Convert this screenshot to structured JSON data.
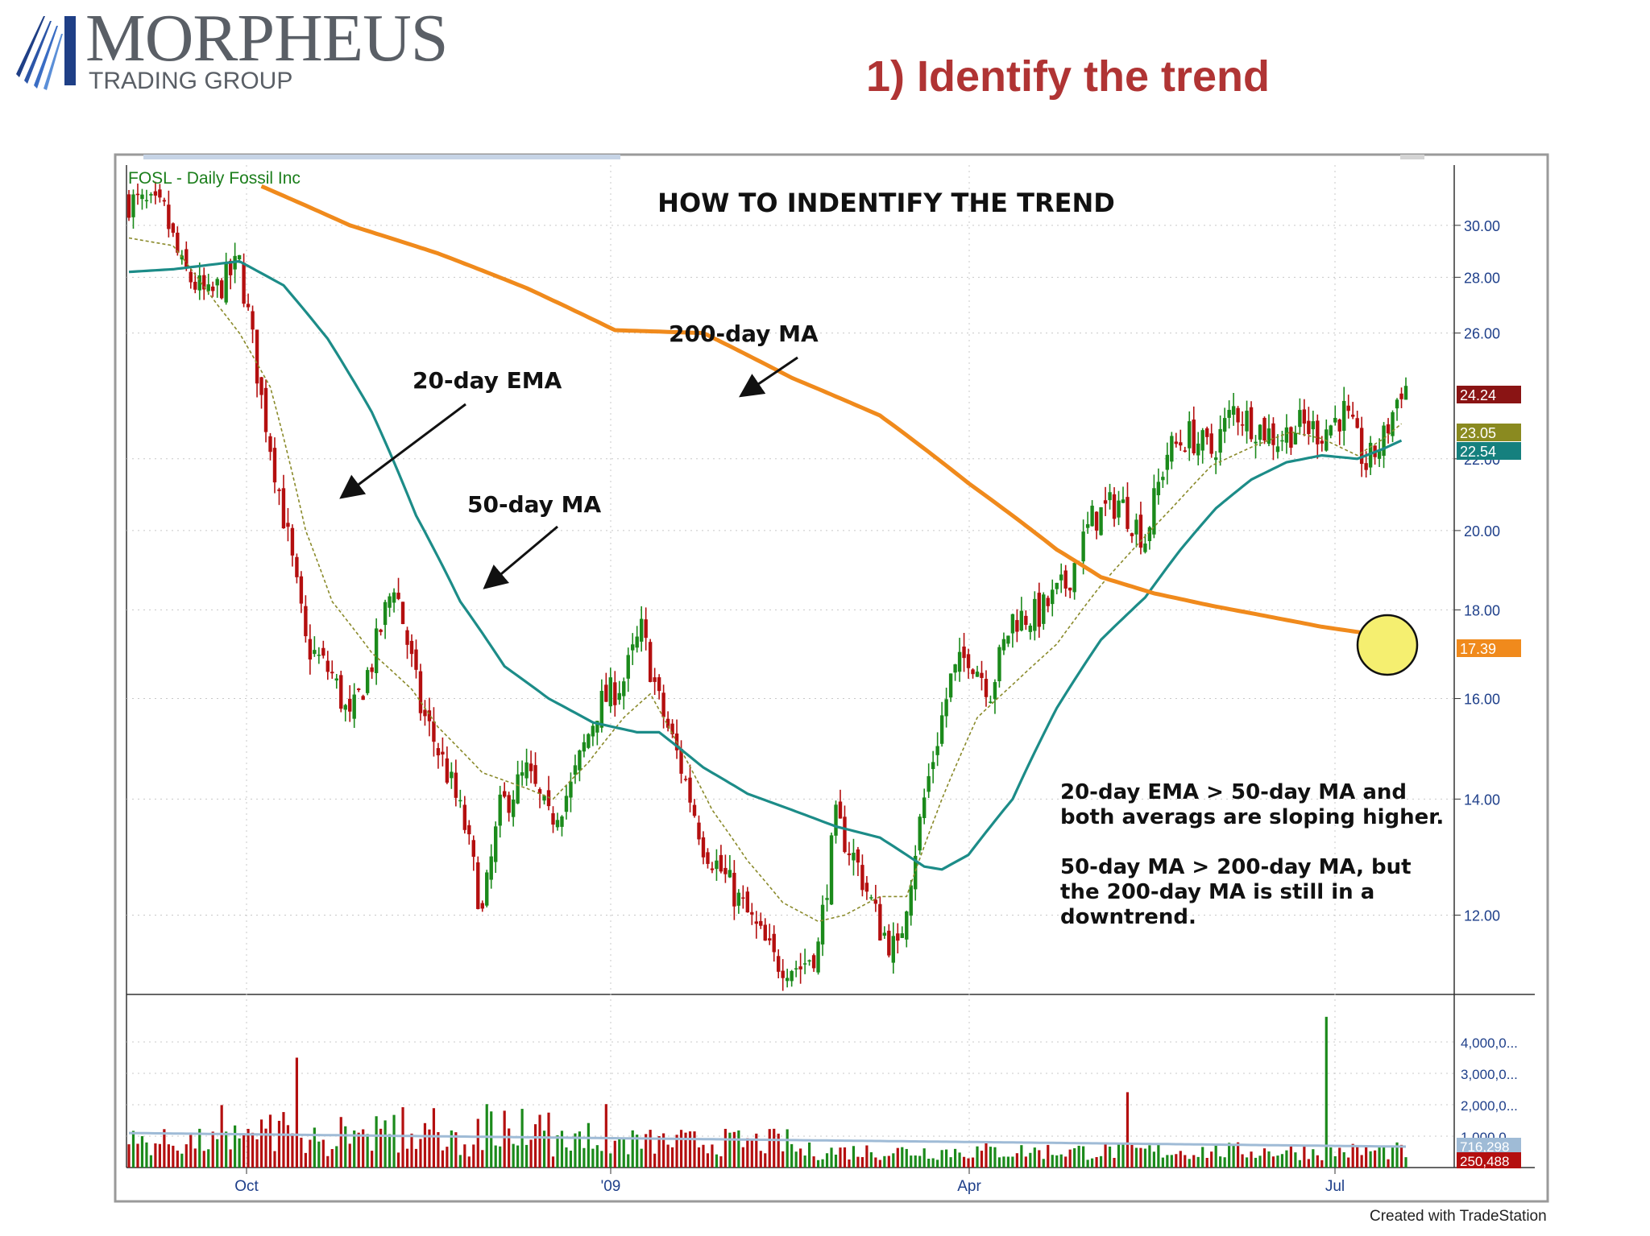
{
  "logo": {
    "brand": "MORPHEUS",
    "sub": "TRADING GROUP"
  },
  "slide_title": "1) Identify the trend",
  "credit": "Created with TradeStation",
  "colors": {
    "up": "#1b8a1b",
    "down": "#b40f0f",
    "ema": "#8a8a2a",
    "ma50": "#1c8c88",
    "ma200": "#f08a1c",
    "title": "#b03434",
    "highlight": "#f5ef70"
  },
  "chart_data": {
    "type": "candlestick",
    "symbol_label": "FOSL - Daily  Fossil Inc",
    "title": "HOW TO INDENTIFY THE TREND",
    "y_log": true,
    "ylim": [
      10.8,
      32.5
    ],
    "y_ticks": [
      "30.00",
      "28.00",
      "26.00",
      "22.00",
      "20.00",
      "18.00",
      "16.00",
      "14.00",
      "12.00"
    ],
    "x_ticks": [
      "Oct",
      "'09",
      "Apr",
      "Jul"
    ],
    "price_tags": [
      {
        "label": "24.24",
        "value": 24.24,
        "color": "#8a1414"
      },
      {
        "label": "23.05",
        "value": 23.05,
        "color": "#8a8a20"
      },
      {
        "label": "22.54",
        "value": 22.54,
        "color": "#15807e"
      },
      {
        "label": "17.39",
        "value": 17.39,
        "color": "#f08a1c"
      }
    ],
    "anchors": [
      [
        0,
        31.0
      ],
      [
        8,
        30.5
      ],
      [
        12,
        28.3
      ],
      [
        18,
        27.2
      ],
      [
        25,
        28.5
      ],
      [
        30,
        23.8
      ],
      [
        35,
        20.4
      ],
      [
        40,
        17.2
      ],
      [
        46,
        16.5
      ],
      [
        50,
        15.5
      ],
      [
        55,
        16.8
      ],
      [
        60,
        18.7
      ],
      [
        66,
        15.8
      ],
      [
        72,
        14.5
      ],
      [
        76,
        13.5
      ],
      [
        80,
        12.0
      ],
      [
        84,
        13.8
      ],
      [
        90,
        14.5
      ],
      [
        95,
        13.6
      ],
      [
        100,
        14.2
      ],
      [
        106,
        15.8
      ],
      [
        112,
        16.4
      ],
      [
        116,
        17.5
      ],
      [
        120,
        15.9
      ],
      [
        125,
        14.6
      ],
      [
        130,
        13.2
      ],
      [
        135,
        12.6
      ],
      [
        140,
        12.0
      ],
      [
        146,
        11.3
      ],
      [
        152,
        11.2
      ],
      [
        156,
        11.5
      ],
      [
        160,
        13.6
      ],
      [
        165,
        12.8
      ],
      [
        170,
        11.8
      ],
      [
        174,
        11.4
      ],
      [
        180,
        14.0
      ],
      [
        186,
        16.4
      ],
      [
        190,
        17.0
      ],
      [
        195,
        16.2
      ],
      [
        200,
        17.8
      ],
      [
        206,
        17.9
      ],
      [
        212,
        18.6
      ],
      [
        218,
        20.3
      ],
      [
        224,
        20.8
      ],
      [
        230,
        19.8
      ],
      [
        235,
        22.2
      ],
      [
        240,
        22.7
      ],
      [
        245,
        22.2
      ],
      [
        250,
        23.5
      ],
      [
        255,
        23.0
      ],
      [
        260,
        22.6
      ],
      [
        265,
        23.0
      ],
      [
        270,
        22.8
      ],
      [
        275,
        23.4
      ],
      [
        280,
        21.8
      ],
      [
        284,
        22.6
      ],
      [
        288,
        24.2
      ]
    ],
    "series": [
      {
        "name": "20-day EMA",
        "anchors": [
          [
            0,
            29.5
          ],
          [
            10,
            29.2
          ],
          [
            20,
            27.0
          ],
          [
            25,
            26.0
          ],
          [
            32,
            24.2
          ],
          [
            40,
            20.0
          ],
          [
            46,
            18.2
          ],
          [
            55,
            17.0
          ],
          [
            64,
            16.2
          ],
          [
            70,
            15.4
          ],
          [
            80,
            14.5
          ],
          [
            90,
            14.2
          ],
          [
            96,
            14.0
          ],
          [
            104,
            14.7
          ],
          [
            112,
            15.6
          ],
          [
            118,
            16.1
          ],
          [
            124,
            15.1
          ],
          [
            132,
            13.8
          ],
          [
            140,
            12.9
          ],
          [
            148,
            12.2
          ],
          [
            156,
            11.9
          ],
          [
            162,
            12.0
          ],
          [
            170,
            12.3
          ],
          [
            176,
            12.3
          ],
          [
            184,
            14.0
          ],
          [
            192,
            15.6
          ],
          [
            200,
            16.3
          ],
          [
            210,
            17.2
          ],
          [
            220,
            18.6
          ],
          [
            228,
            19.6
          ],
          [
            236,
            20.6
          ],
          [
            245,
            21.8
          ],
          [
            255,
            22.4
          ],
          [
            263,
            22.8
          ],
          [
            270,
            22.6
          ],
          [
            278,
            22.1
          ],
          [
            284,
            22.6
          ],
          [
            288,
            23.05
          ]
        ]
      },
      {
        "name": "50-day MA",
        "anchors": [
          [
            0,
            28.2
          ],
          [
            10,
            28.3
          ],
          [
            25,
            28.6
          ],
          [
            35,
            27.7
          ],
          [
            45,
            25.8
          ],
          [
            55,
            23.4
          ],
          [
            65,
            20.4
          ],
          [
            75,
            18.2
          ],
          [
            85,
            16.7
          ],
          [
            95,
            16.0
          ],
          [
            105,
            15.5
          ],
          [
            115,
            15.3
          ],
          [
            120,
            15.3
          ],
          [
            130,
            14.6
          ],
          [
            140,
            14.1
          ],
          [
            150,
            13.8
          ],
          [
            160,
            13.5
          ],
          [
            170,
            13.3
          ],
          [
            180,
            12.8
          ],
          [
            184,
            12.75
          ],
          [
            190,
            13.0
          ],
          [
            200,
            14.0
          ],
          [
            210,
            15.8
          ],
          [
            220,
            17.3
          ],
          [
            230,
            18.3
          ],
          [
            238,
            19.5
          ],
          [
            246,
            20.6
          ],
          [
            254,
            21.4
          ],
          [
            262,
            21.9
          ],
          [
            270,
            22.1
          ],
          [
            278,
            22.0
          ],
          [
            284,
            22.3
          ],
          [
            288,
            22.54
          ]
        ]
      },
      {
        "name": "200-day MA",
        "anchors": [
          [
            30,
            31.6
          ],
          [
            50,
            30.0
          ],
          [
            70,
            28.9
          ],
          [
            90,
            27.6
          ],
          [
            110,
            26.1
          ],
          [
            130,
            26.0
          ],
          [
            150,
            24.5
          ],
          [
            170,
            23.3
          ],
          [
            190,
            21.3
          ],
          [
            210,
            19.5
          ],
          [
            220,
            18.8
          ],
          [
            232,
            18.4
          ],
          [
            245,
            18.1
          ],
          [
            260,
            17.8
          ],
          [
            270,
            17.6
          ],
          [
            280,
            17.45
          ],
          [
            288,
            17.39
          ]
        ]
      }
    ],
    "volume": {
      "y_ticks": [
        "4,000,0...",
        "3,000,0...",
        "2,000,0...",
        "1,000,0..."
      ],
      "tags": [
        {
          "label": "716,298",
          "color": "#9fbbd6"
        },
        {
          "label": "250,488",
          "color": "#b40f0f"
        }
      ],
      "spikes": [
        [
          38,
          3500000
        ],
        [
          271,
          4800000
        ],
        [
          226,
          2400000
        ]
      ]
    },
    "annotations": [
      {
        "text": "200-day MA"
      },
      {
        "text": "20-day EMA"
      },
      {
        "text": "50-day MA"
      },
      {
        "text": "20-day EMA > 50-day MA and"
      },
      {
        "text": "both averags are sloping higher."
      },
      {
        "text": "50-day MA > 200-day MA, but"
      },
      {
        "text": "the 200-day MA is still in a"
      },
      {
        "text": "downtrend."
      }
    ]
  }
}
